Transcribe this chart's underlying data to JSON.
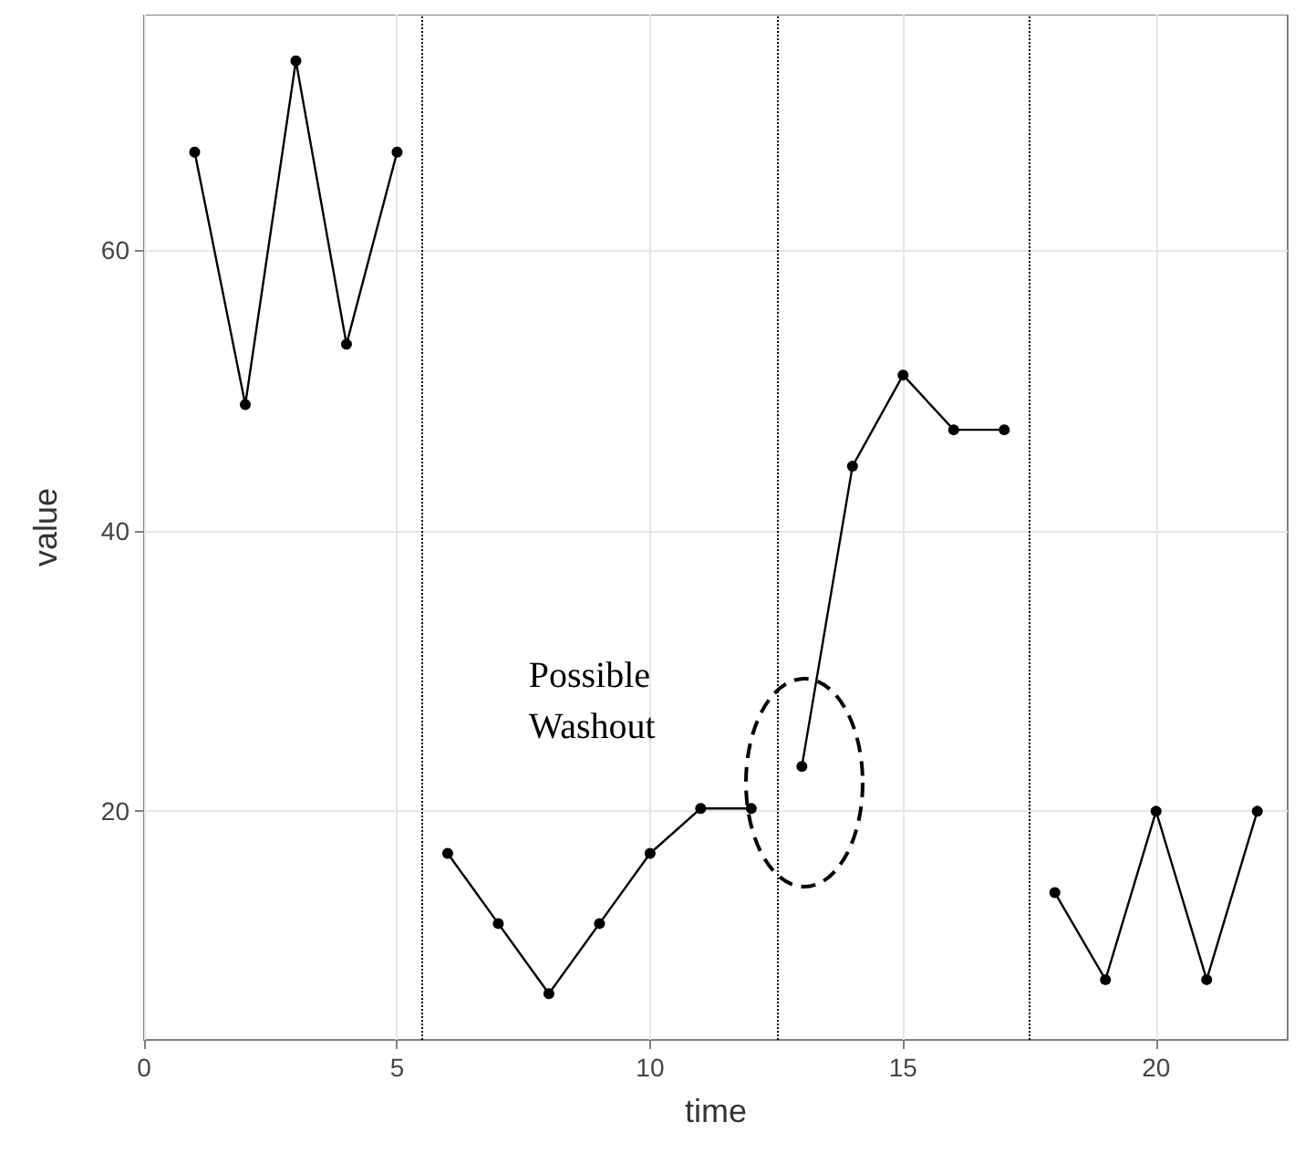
{
  "chart_data": {
    "type": "line",
    "xlabel": "time",
    "ylabel": "value",
    "xlim": [
      0,
      22.6
    ],
    "ylim": [
      3.7,
      76.8
    ],
    "xticks": [
      0,
      5,
      10,
      15,
      20
    ],
    "yticks": [
      20,
      40,
      60
    ],
    "grid": true,
    "marker": "circle",
    "line_style": "solid",
    "series": [
      {
        "color": "#000000",
        "x": [
          1,
          2,
          3,
          4,
          5
        ],
        "values": [
          67,
          49,
          73.5,
          53.3,
          67
        ]
      },
      {
        "color": "#000000",
        "x": [
          6,
          7,
          8,
          9,
          10,
          11,
          12
        ],
        "values": [
          17,
          12,
          7,
          12,
          17,
          20.2,
          20.2
        ]
      },
      {
        "color": "#000000",
        "x": [
          13,
          14,
          15,
          16,
          17
        ],
        "values": [
          23.2,
          44.6,
          51.1,
          47.2,
          47.2
        ]
      },
      {
        "color": "#000000",
        "x": [
          18,
          19,
          20,
          21,
          22
        ],
        "values": [
          14.2,
          8,
          20,
          8,
          20
        ]
      }
    ],
    "ref_lines": [
      {
        "axis": "x",
        "value": 5.5,
        "line_style": "dotted",
        "color": "#000000"
      },
      {
        "axis": "x",
        "value": 12.5,
        "line_style": "dotted",
        "color": "#000000"
      },
      {
        "axis": "x",
        "value": 17.5,
        "line_style": "dotted",
        "color": "#000000"
      }
    ],
    "annotations": [
      "Possible Washout"
    ]
  }
}
